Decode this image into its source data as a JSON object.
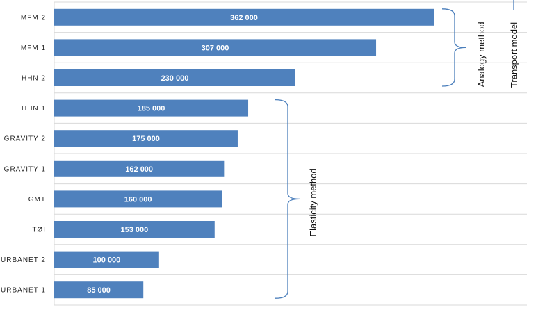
{
  "chart_data": {
    "type": "bar",
    "orientation": "horizontal",
    "categories": [
      "MFM 2",
      "MFM 1",
      "HHN 2",
      "HHN 1",
      "GRAVITY 2",
      "GRAVITY 1",
      "GMT",
      "TØI",
      "URBANET 2",
      "URBANET 1"
    ],
    "values": [
      362000,
      307000,
      230000,
      185000,
      175000,
      162000,
      160000,
      153000,
      100000,
      85000
    ],
    "value_labels": [
      "362 000",
      "307 000",
      "230 000",
      "185 000",
      "175 000",
      "162 000",
      "160 000",
      "153 000",
      "100 000",
      "85 000"
    ],
    "xlim": [
      0,
      450000
    ],
    "grid": true,
    "colors": {
      "bar": "#4f81bd",
      "bracket": "#4a7ebb",
      "grid": "#d9d9d9"
    },
    "annotations": [
      {
        "label": "Analogy method",
        "from_category": "MFM 2",
        "to_category": "HHN 2"
      },
      {
        "label": "Elasticity method",
        "from_category": "HHN 1",
        "to_category": "URBANET 1"
      },
      {
        "label": "Transport model",
        "from_category": "MFM 2",
        "to_category": "MFM 2"
      }
    ]
  }
}
